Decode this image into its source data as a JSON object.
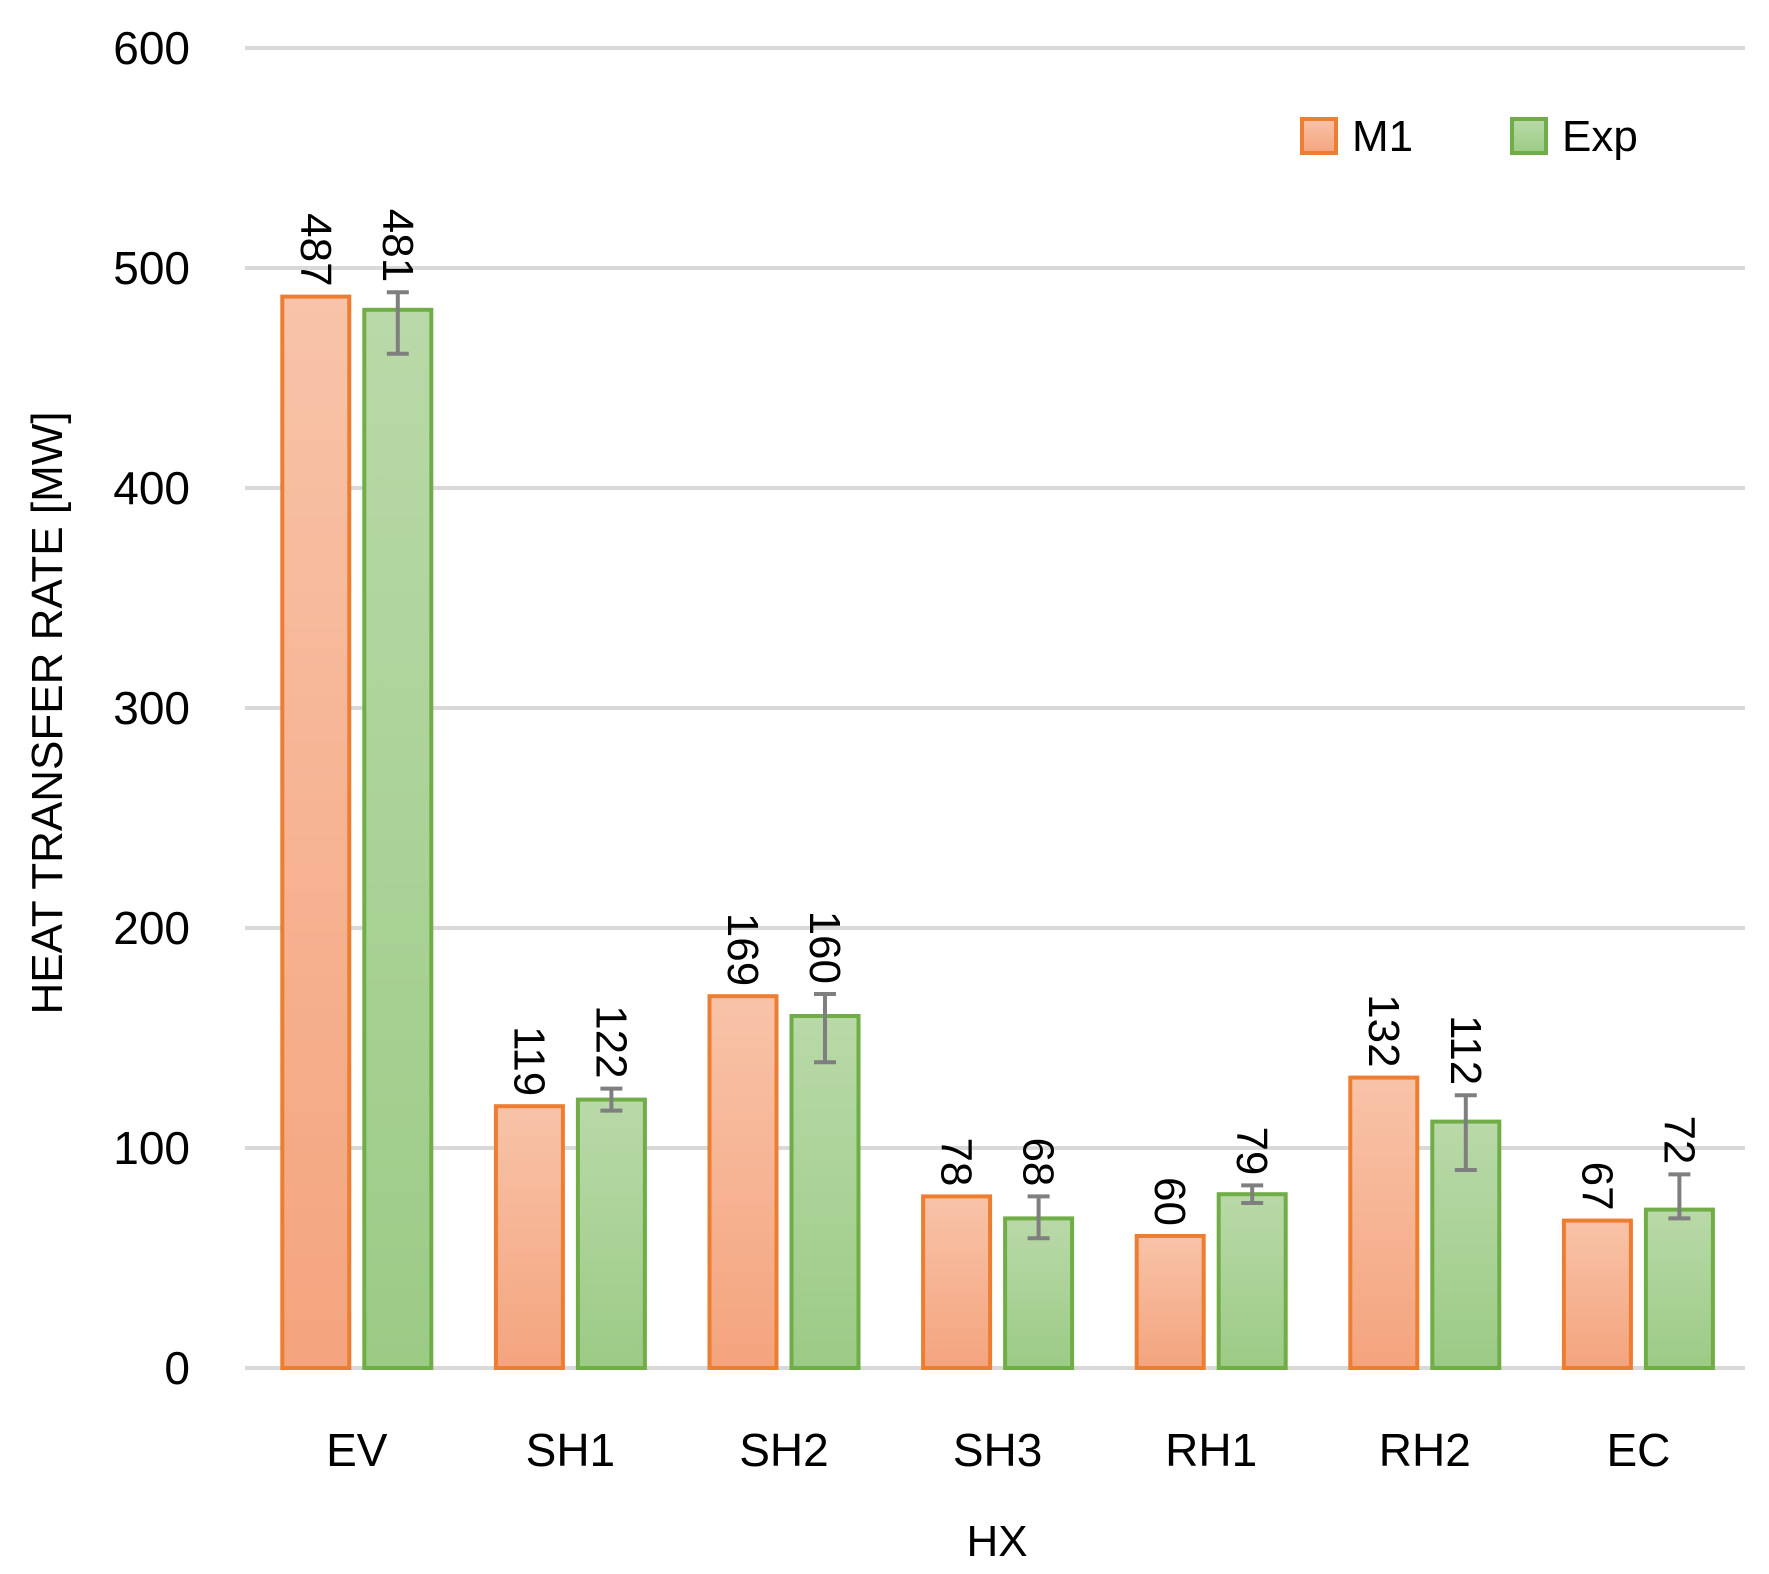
{
  "chart_data": {
    "type": "bar",
    "title": "",
    "xlabel": "HX",
    "ylabel": "HEAT TRANSFER RATE [MW]",
    "ylim": [
      0,
      600
    ],
    "yticks": [
      0,
      100,
      200,
      300,
      400,
      500,
      600
    ],
    "ytick_labels": [
      "0",
      "100",
      "200",
      "300",
      "400",
      "500",
      "600"
    ],
    "grid": true,
    "legend_position": "top-right",
    "categories": [
      "EV",
      "SH1",
      "SH2",
      "SH3",
      "RH1",
      "RH2",
      "EC"
    ],
    "series": [
      {
        "name": "M1",
        "values": [
          487,
          119,
          169,
          78,
          60,
          132,
          67
        ],
        "labels": [
          "487",
          "119",
          "169",
          "78",
          "60",
          "132",
          "67"
        ],
        "fill_top": "#F8C3A8",
        "fill_bottom": "#F4A47E",
        "stroke": "#ED7D31"
      },
      {
        "name": "Exp",
        "values": [
          481,
          122,
          160,
          68,
          79,
          112,
          72
        ],
        "labels": [
          "481",
          "122",
          "160",
          "68",
          "79",
          "112",
          "72"
        ],
        "error_low": [
          461,
          117,
          139,
          59,
          75,
          90,
          68
        ],
        "error_high": [
          489,
          127,
          170,
          78,
          83,
          124,
          88
        ],
        "fill_top": "#B9D9A8",
        "fill_bottom": "#9CCB86",
        "stroke": "#70AD47"
      }
    ],
    "colors": {
      "grid": "#D9D9D9",
      "error_bar": "#7F7F7F"
    }
  }
}
